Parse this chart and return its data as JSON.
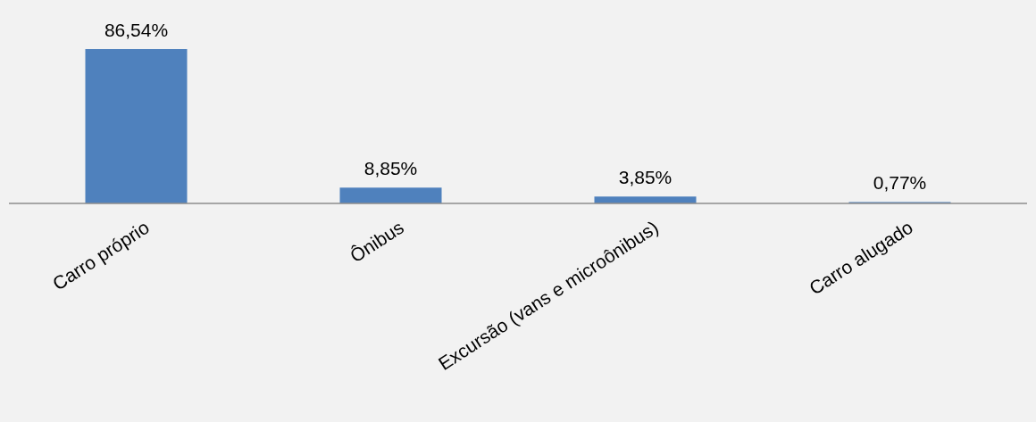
{
  "chart_data": {
    "type": "bar",
    "categories": [
      "Carro próprio",
      "Ônibus",
      "Excursão (vans e microônibus)",
      "Carro alugado"
    ],
    "values": [
      86.54,
      8.85,
      3.85,
      0.77
    ],
    "value_labels": [
      "86,54%",
      "8,85%",
      "3,85%",
      "0,77%"
    ],
    "color": "#4f81bd"
  }
}
